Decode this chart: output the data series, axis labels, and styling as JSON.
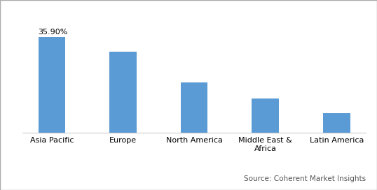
{
  "categories": [
    "Asia Pacific",
    "Europe",
    "North America",
    "Middle East &\nAfrica",
    "Latin America"
  ],
  "values": [
    35.9,
    30.5,
    19.0,
    13.0,
    7.5
  ],
  "bar_color": "#5B9BD5",
  "annotation_text": "35.90%",
  "annotation_fontsize": 8,
  "source_text": "Source: Coherent Market Insights",
  "source_fontsize": 7.5,
  "ylim": [
    0,
    44
  ],
  "tick_label_fontsize": 8,
  "background_color": "#ffffff",
  "bar_width": 0.38,
  "border_color": "#aaaaaa",
  "annotation_color": "#000000",
  "source_color": "#555555"
}
